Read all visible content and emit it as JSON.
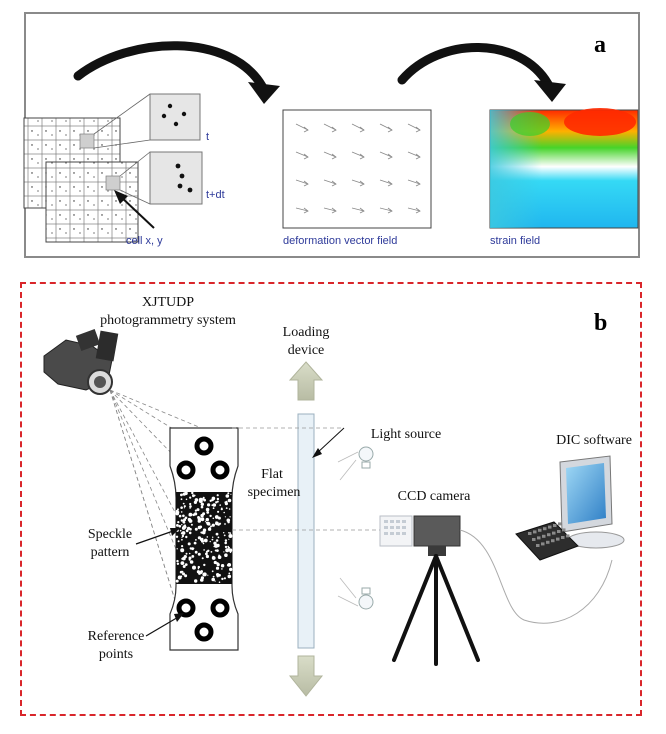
{
  "panel_a": {
    "letter": "a",
    "labels": {
      "t": "t",
      "t_dt": "t+dt",
      "cell": "cell x, y",
      "deformation": "deformation vector field",
      "strain": "strain field"
    }
  },
  "panel_b": {
    "letter": "b",
    "labels": {
      "system_line1": "XJTUDP",
      "system_line2": "photogrammetry system",
      "loading_line1": "Loading",
      "loading_line2": "device",
      "light_source": "Light source",
      "flat_line1": "Flat",
      "flat_line2": "specimen",
      "ccd_camera": "CCD camera",
      "dic_software": "DIC software",
      "speckle_line1": "Speckle",
      "speckle_line2": "pattern",
      "reference_line1": "Reference",
      "reference_line2": "points"
    }
  },
  "colors": {
    "frame_gray": "#8a8a8a",
    "dashed_red": "#d9262b",
    "label_blue": "#2e3a9a",
    "arrow_black": "#111111"
  }
}
